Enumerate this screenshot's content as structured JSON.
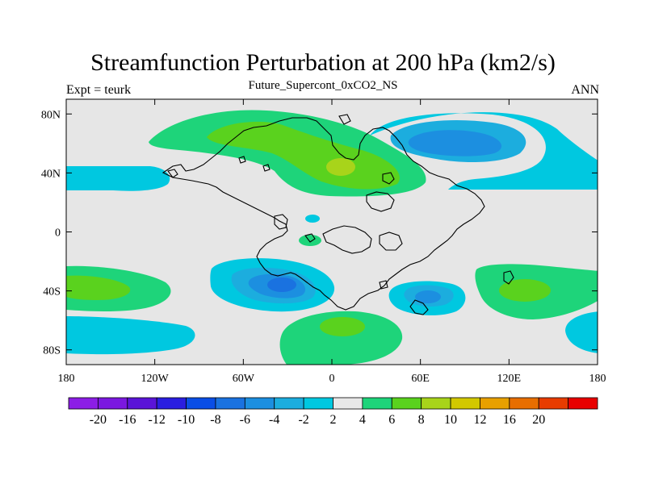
{
  "title": "Streamfunction Perturbation at 200 hPa (km2/s)",
  "subtitle": "Future_Supercont_0xCO2_NS",
  "left_label": "Expt = teurk",
  "right_label": "ANN",
  "map": {
    "lon_ticks": [
      {
        "lon": -180,
        "label": "180"
      },
      {
        "lon": -120,
        "label": "120W"
      },
      {
        "lon": -60,
        "label": "60W"
      },
      {
        "lon": 0,
        "label": "0"
      },
      {
        "lon": 60,
        "label": "60E"
      },
      {
        "lon": 120,
        "label": "120E"
      },
      {
        "lon": 180,
        "label": "180"
      }
    ],
    "lat_ticks": [
      {
        "lat": 80,
        "label": "80N"
      },
      {
        "lat": 40,
        "label": "40N"
      },
      {
        "lat": 0,
        "label": "0"
      },
      {
        "lat": -40,
        "label": "40S"
      },
      {
        "lat": -80,
        "label": "80S"
      }
    ],
    "lon_range": [
      -180,
      180
    ],
    "lat_range": [
      -90,
      90
    ],
    "background_color": "#e6e6e6",
    "field": "streamfunction perturbation",
    "units": "km2/s",
    "anomalies": [
      {
        "lon": -65,
        "lat": 70,
        "peak_level": 4
      },
      {
        "lon": 8,
        "lat": 44,
        "peak_level": 8
      },
      {
        "lon": 95,
        "lat": 60,
        "peak_level": -8
      },
      {
        "lon": -140,
        "lat": 38,
        "peak_level": -4
      },
      {
        "lon": -35,
        "lat": -36,
        "peak_level": -10
      },
      {
        "lon": 10,
        "lat": -65,
        "peak_level": 6
      },
      {
        "lon": 70,
        "lat": -45,
        "peak_level": -8
      },
      {
        "lon": 140,
        "lat": -38,
        "peak_level": 6
      },
      {
        "lon": -150,
        "lat": -38,
        "peak_level": 4
      },
      {
        "lon": -160,
        "lat": -68,
        "peak_level": -4
      },
      {
        "lon": 175,
        "lat": -68,
        "peak_level": -4
      },
      {
        "lon": -15,
        "lat": -7,
        "peak_level": 4
      },
      {
        "lon": -14,
        "lat": 8,
        "peak_level": -4
      }
    ]
  },
  "colorbar": {
    "labels": [
      "-20",
      "-16",
      "-12",
      "-10",
      "-8",
      "-6",
      "-4",
      "-2",
      "2",
      "4",
      "6",
      "8",
      "10",
      "12",
      "16",
      "20"
    ],
    "colors": [
      "#8c1ee6",
      "#7b18e0",
      "#5a14d8",
      "#2a1ee0",
      "#0a4ee6",
      "#1a72e0",
      "#1c8fe0",
      "#1cadde",
      "#00c8e0",
      "#e8e8e8",
      "#1ed47a",
      "#5ad21e",
      "#a8d41a",
      "#d2c800",
      "#e8a000",
      "#e86e00",
      "#e83c00",
      "#e80000"
    ]
  }
}
